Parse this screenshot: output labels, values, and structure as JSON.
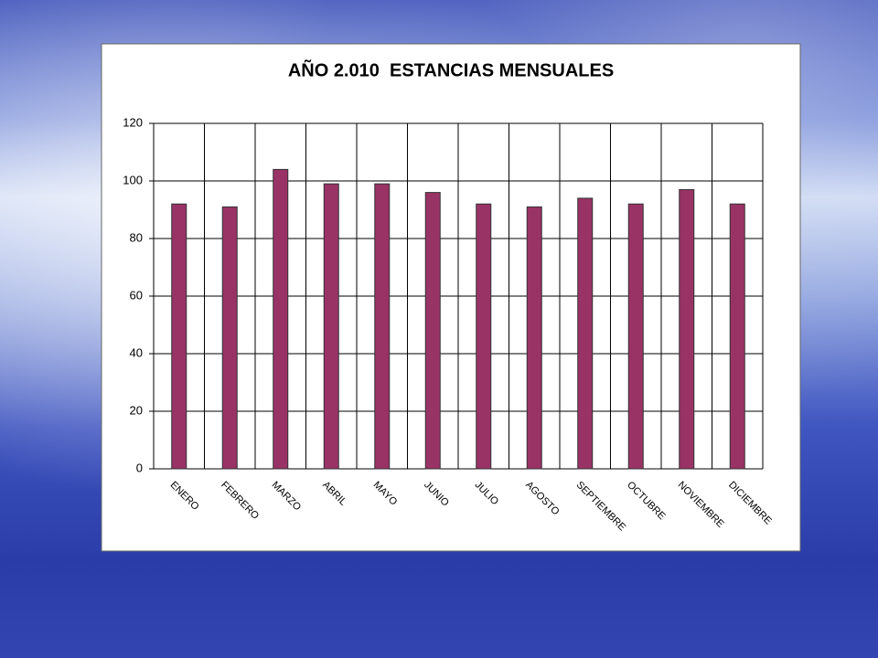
{
  "chart_data": {
    "type": "bar",
    "title": "AÑO 2.010  ESTANCIAS MENSUALES",
    "categories": [
      "ENERO",
      "FEBRERO",
      "MARZO",
      "ABRIL",
      "MAYO",
      "JUNIO",
      "JULIO",
      "AGOSTO",
      "SEPTIEMBRE",
      "OCTUBRE",
      "NOVIEMBRE",
      "DICIEMBRE"
    ],
    "values": [
      92,
      91,
      104,
      99,
      99,
      96,
      92,
      91,
      94,
      92,
      97,
      92
    ],
    "color": "#993366",
    "ylim": [
      0,
      120
    ],
    "yticks": [
      0,
      20,
      40,
      60,
      80,
      100,
      120
    ],
    "grid": true
  }
}
